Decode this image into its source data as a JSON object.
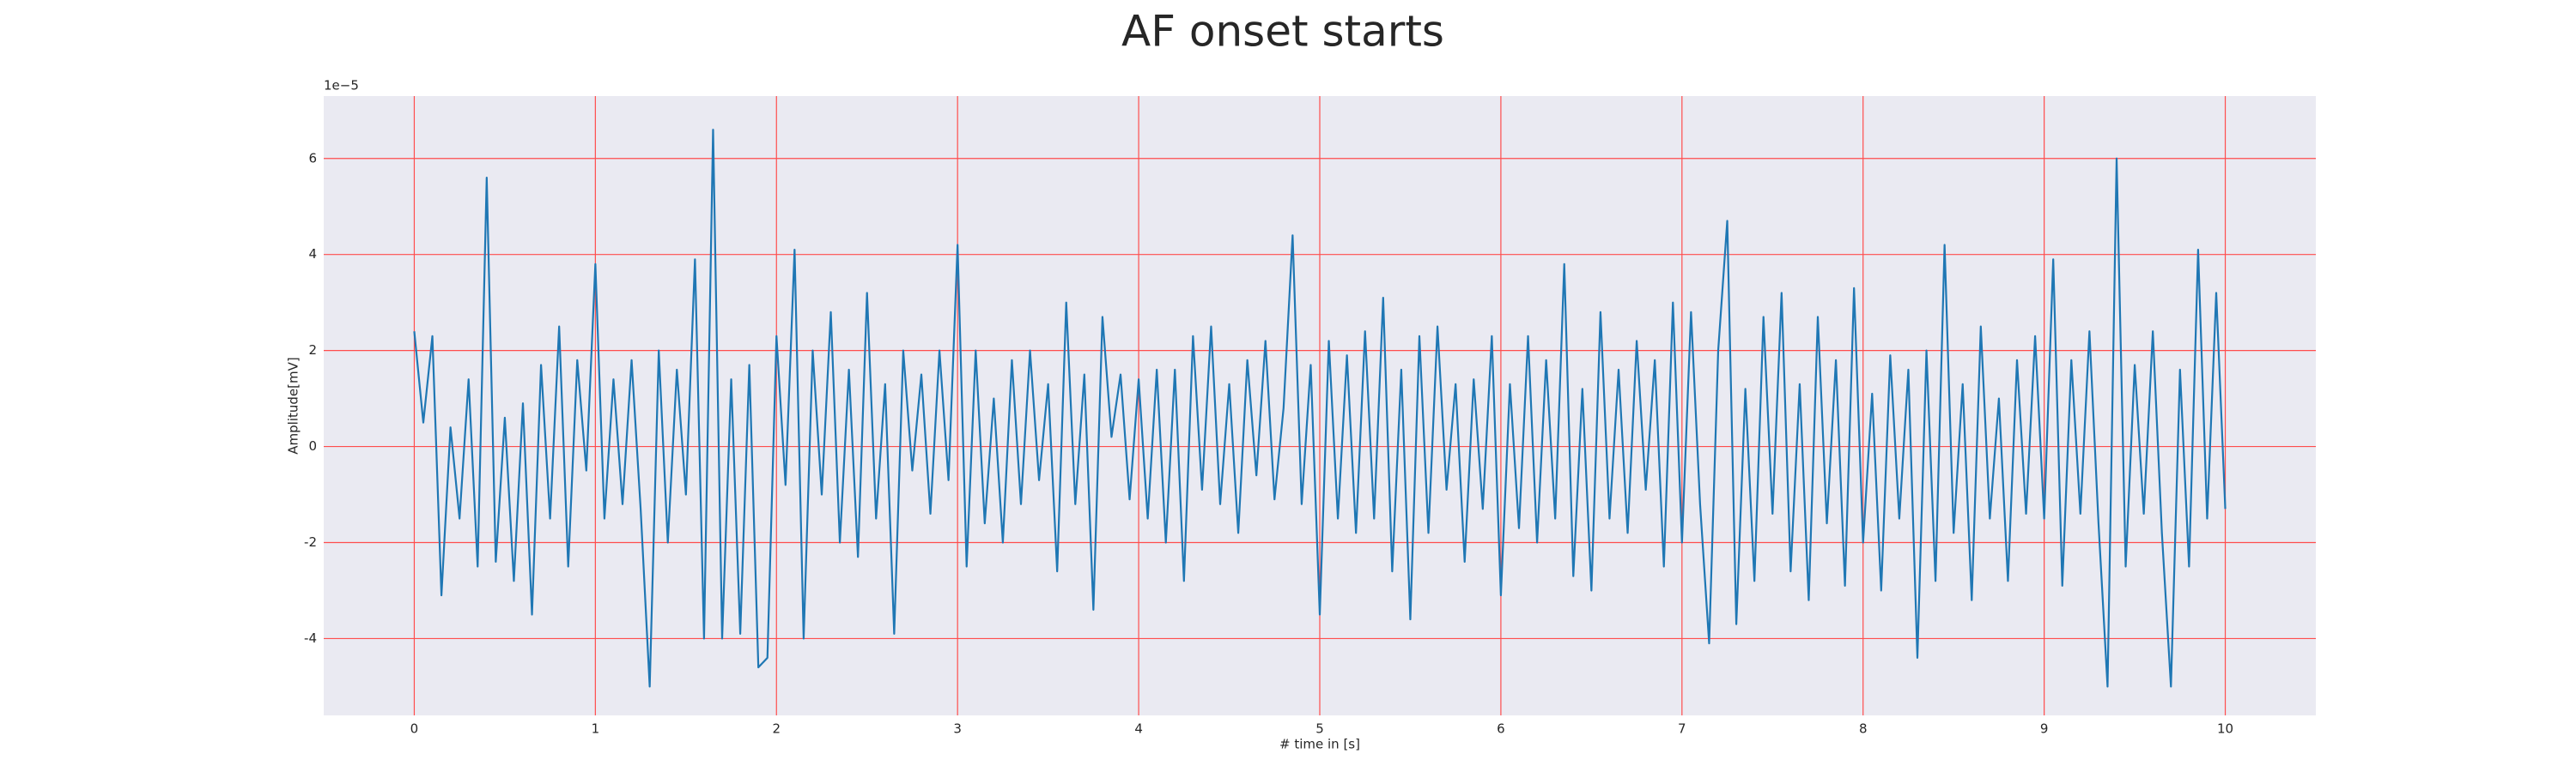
{
  "chart_data": {
    "type": "line",
    "title": "AF onset starts",
    "x_label": "# time in [s]",
    "y_label": "Amplitude[mV]",
    "y_offset_label": "1e−5",
    "xlim": [
      -0.5,
      10.5
    ],
    "ylim": [
      -5.6,
      7.3
    ],
    "xticks": [
      0,
      1,
      2,
      3,
      4,
      5,
      6,
      7,
      8,
      9,
      10
    ],
    "yticks": [
      -4,
      -2,
      0,
      2,
      4,
      6
    ],
    "grid": true,
    "grid_color": "#ff4d4d",
    "x": [
      0,
      0.05,
      0.1,
      0.15,
      0.2,
      0.25,
      0.3,
      0.35,
      0.4,
      0.45,
      0.5,
      0.55,
      0.6,
      0.65,
      0.7,
      0.75,
      0.8,
      0.85,
      0.9,
      0.95,
      1,
      1.05,
      1.1,
      1.15,
      1.2,
      1.25,
      1.3,
      1.35,
      1.4,
      1.45,
      1.5,
      1.55,
      1.6,
      1.65,
      1.7,
      1.75,
      1.8,
      1.85,
      1.9,
      1.95,
      2,
      2.05,
      2.1,
      2.15,
      2.2,
      2.25,
      2.3,
      2.35,
      2.4,
      2.45,
      2.5,
      2.55,
      2.6,
      2.65,
      2.7,
      2.75,
      2.8,
      2.85,
      2.9,
      2.95,
      3,
      3.05,
      3.1,
      3.15,
      3.2,
      3.25,
      3.3,
      3.35,
      3.4,
      3.45,
      3.5,
      3.55,
      3.6,
      3.65,
      3.7,
      3.75,
      3.8,
      3.85,
      3.9,
      3.95,
      4,
      4.05,
      4.1,
      4.15,
      4.2,
      4.25,
      4.3,
      4.35,
      4.4,
      4.45,
      4.5,
      4.55,
      4.6,
      4.65,
      4.7,
      4.75,
      4.8,
      4.85,
      4.9,
      4.95,
      5,
      5.05,
      5.1,
      5.15,
      5.2,
      5.25,
      5.3,
      5.35,
      5.4,
      5.45,
      5.5,
      5.55,
      5.6,
      5.65,
      5.7,
      5.75,
      5.8,
      5.85,
      5.9,
      5.95,
      6,
      6.05,
      6.1,
      6.15,
      6.2,
      6.25,
      6.3,
      6.35,
      6.4,
      6.45,
      6.5,
      6.55,
      6.6,
      6.65,
      6.7,
      6.75,
      6.8,
      6.85,
      6.9,
      6.95,
      7,
      7.05,
      7.1,
      7.15,
      7.2,
      7.25,
      7.3,
      7.35,
      7.4,
      7.45,
      7.5,
      7.55,
      7.6,
      7.65,
      7.7,
      7.75,
      7.8,
      7.85,
      7.9,
      7.95,
      8,
      8.05,
      8.1,
      8.15,
      8.2,
      8.25,
      8.3,
      8.35,
      8.4,
      8.45,
      8.5,
      8.55,
      8.6,
      8.65,
      8.7,
      8.75,
      8.8,
      8.85,
      8.9,
      8.95,
      9,
      9.05,
      9.1,
      9.15,
      9.2,
      9.25,
      9.3,
      9.35,
      9.4,
      9.45,
      9.5,
      9.55,
      9.6,
      9.65,
      9.7,
      9.75,
      9.8,
      9.85,
      9.9,
      9.95,
      10
    ],
    "series": [
      {
        "color": "#1f77b4",
        "values": [
          2.4,
          0.5,
          2.3,
          -3.1,
          0.4,
          -1.5,
          1.4,
          -2.5,
          5.6,
          -2.4,
          0.6,
          -2.8,
          0.9,
          -3.5,
          1.7,
          -1.5,
          2.5,
          -2.5,
          1.8,
          -0.5,
          3.8,
          -1.5,
          1.4,
          -1.2,
          1.8,
          -1.3,
          -5.0,
          2.0,
          -2.0,
          1.6,
          -1.0,
          3.9,
          -4.0,
          6.6,
          -4.0,
          1.4,
          -3.9,
          1.7,
          -4.6,
          -4.4,
          2.3,
          -0.8,
          4.1,
          -4.0,
          2.0,
          -1.0,
          2.8,
          -2.0,
          1.6,
          -2.3,
          3.2,
          -1.5,
          1.3,
          -3.9,
          2.0,
          -0.5,
          1.5,
          -1.4,
          2.0,
          -0.7,
          4.2,
          -2.5,
          2.0,
          -1.6,
          1.0,
          -2.0,
          1.8,
          -1.2,
          2.0,
          -0.7,
          1.3,
          -2.6,
          3.0,
          -1.2,
          1.5,
          -3.4,
          2.7,
          0.2,
          1.5,
          -1.1,
          1.4,
          -1.5,
          1.6,
          -2.0,
          1.6,
          -2.8,
          2.3,
          -0.9,
          2.5,
          -1.2,
          1.3,
          -1.8,
          1.8,
          -0.6,
          2.2,
          -1.1,
          0.8,
          4.4,
          -1.2,
          1.7,
          -3.5,
          2.2,
          -1.5,
          1.9,
          -1.8,
          2.4,
          -1.5,
          3.1,
          -2.6,
          1.6,
          -3.6,
          2.3,
          -1.8,
          2.5,
          -0.9,
          1.3,
          -2.4,
          1.4,
          -1.3,
          2.3,
          -3.1,
          1.3,
          -1.7,
          2.3,
          -2.0,
          1.8,
          -1.5,
          3.8,
          -2.7,
          1.2,
          -3.0,
          2.8,
          -1.5,
          1.6,
          -1.8,
          2.2,
          -0.9,
          1.8,
          -2.5,
          3.0,
          -2.0,
          2.8,
          -1.2,
          -4.1,
          2.0,
          4.7,
          -3.7,
          1.2,
          -2.8,
          2.7,
          -1.4,
          3.2,
          -2.6,
          1.3,
          -3.2,
          2.7,
          -1.6,
          1.8,
          -2.9,
          3.3,
          -2.0,
          1.1,
          -3.0,
          1.9,
          -1.5,
          1.6,
          -4.4,
          2.0,
          -2.8,
          4.2,
          -1.8,
          1.3,
          -3.2,
          2.5,
          -1.5,
          1.0,
          -2.8,
          1.8,
          -1.4,
          2.3,
          -1.5,
          3.9,
          -2.9,
          1.8,
          -1.4,
          2.4,
          -1.6,
          -5.0,
          6.0,
          -2.5,
          1.7,
          -1.4,
          2.4,
          -1.8,
          -5.0,
          1.6,
          -2.5,
          4.1,
          -1.5,
          3.2,
          -1.3
        ]
      }
    ]
  }
}
